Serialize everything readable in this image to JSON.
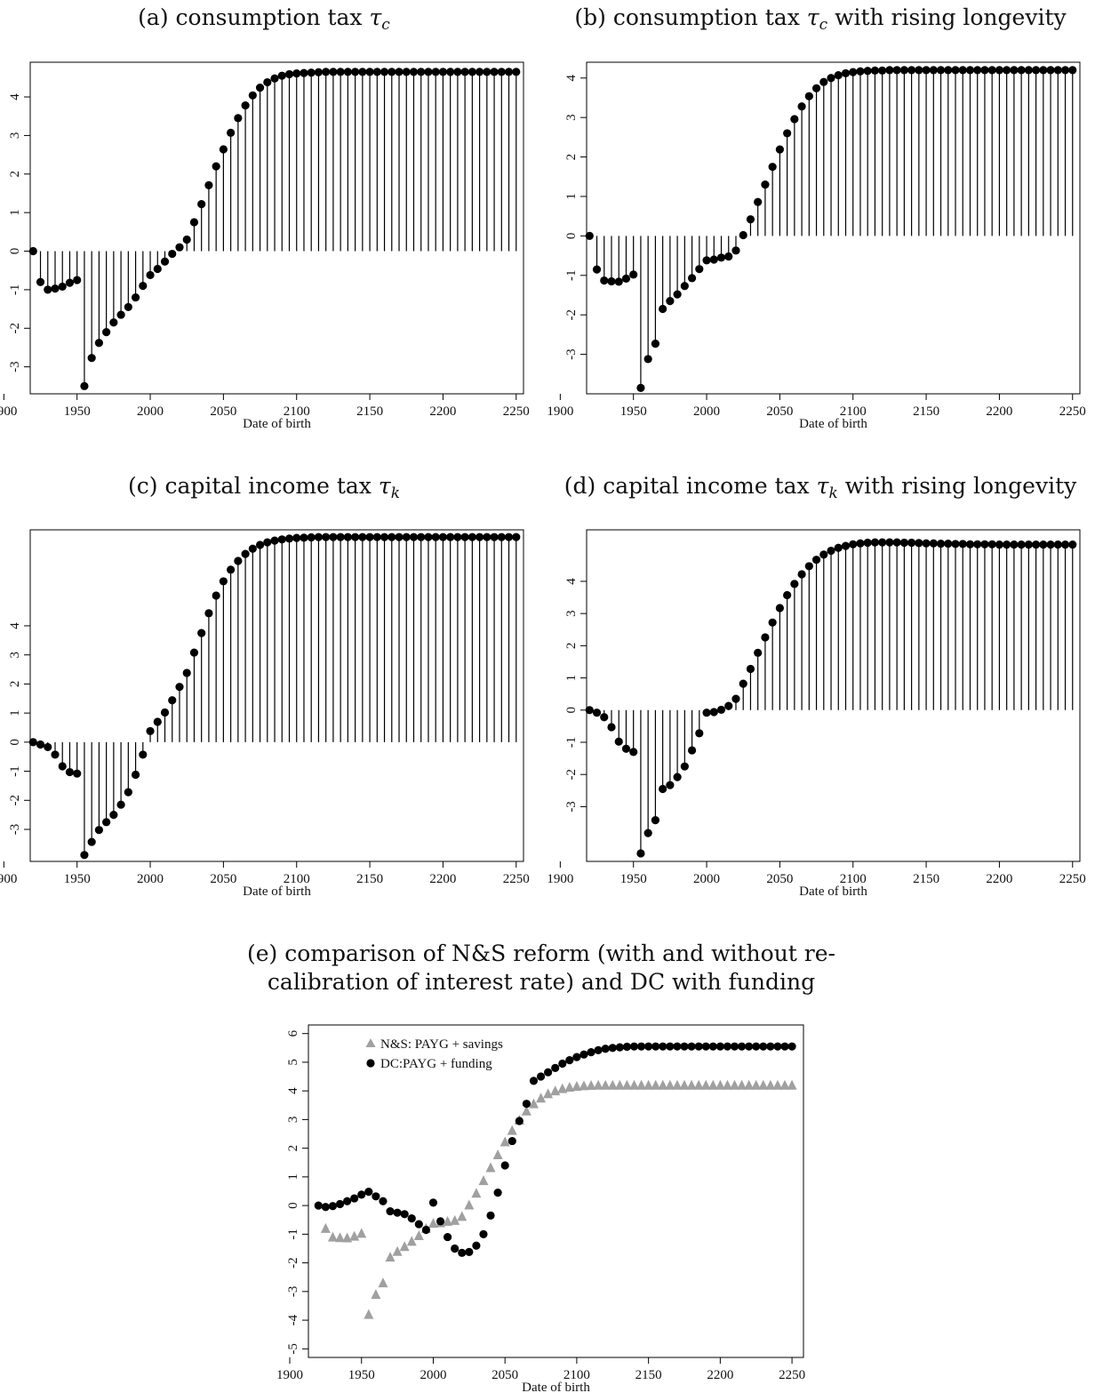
{
  "chart_data": [
    {
      "id": "a",
      "type": "stem",
      "title": "(a) consumption tax τc",
      "title_text": "(a) consumption tax ",
      "title_symbol": "τ",
      "title_subscript": "c",
      "xlabel": "Date of birth",
      "xlim": [
        1918,
        2255
      ],
      "ylim": [
        -3.7,
        4.9
      ],
      "xticks": [
        1900,
        1950,
        2000,
        2050,
        2100,
        2150,
        2200,
        2250
      ],
      "yticks": [
        -3,
        -2,
        -1,
        0,
        1,
        2,
        3,
        4
      ],
      "x_start": 1920,
      "x_step": 5,
      "values": [
        0,
        -0.8,
        -1.0,
        -0.97,
        -0.92,
        -0.82,
        -0.75,
        -3.5,
        -2.77,
        -2.38,
        -2.1,
        -1.85,
        -1.65,
        -1.45,
        -1.2,
        -0.9,
        -0.62,
        -0.46,
        -0.27,
        -0.07,
        0.1,
        0.3,
        0.75,
        1.22,
        1.71,
        2.2,
        2.64,
        3.07,
        3.45,
        3.78,
        4.04,
        4.24,
        4.38,
        4.48,
        4.55,
        4.59,
        4.61,
        4.62,
        4.63,
        4.64,
        4.65,
        4.65,
        4.65,
        4.65,
        4.65,
        4.65,
        4.65,
        4.65,
        4.65,
        4.65,
        4.65,
        4.65,
        4.65,
        4.65,
        4.65,
        4.65,
        4.65,
        4.65,
        4.65,
        4.65,
        4.65,
        4.65,
        4.65,
        4.65,
        4.65,
        4.65,
        4.65
      ]
    },
    {
      "id": "b",
      "type": "stem",
      "title": "(b) consumption tax τc with rising longevity",
      "title_text": "(b) consumption tax ",
      "title_symbol": "τ",
      "title_subscript": "c",
      "title_after": " with rising longevity",
      "xlabel": "Date of birth",
      "xlim": [
        1918,
        2255
      ],
      "ylim": [
        -4.0,
        4.4
      ],
      "xticks": [
        1900,
        1950,
        2000,
        2050,
        2100,
        2150,
        2200,
        2250
      ],
      "yticks": [
        -3,
        -2,
        -1,
        0,
        1,
        2,
        3,
        4
      ],
      "x_start": 1920,
      "x_step": 5,
      "values": [
        0,
        -0.85,
        -1.13,
        -1.15,
        -1.16,
        -1.08,
        -0.98,
        -3.85,
        -3.12,
        -2.73,
        -1.85,
        -1.65,
        -1.48,
        -1.27,
        -1.07,
        -0.84,
        -0.62,
        -0.6,
        -0.55,
        -0.52,
        -0.37,
        0.02,
        0.42,
        0.86,
        1.3,
        1.75,
        2.19,
        2.6,
        2.96,
        3.28,
        3.54,
        3.74,
        3.9,
        4.0,
        4.07,
        4.12,
        4.15,
        4.17,
        4.18,
        4.19,
        4.19,
        4.2,
        4.2,
        4.2,
        4.2,
        4.2,
        4.2,
        4.2,
        4.2,
        4.2,
        4.2,
        4.2,
        4.2,
        4.2,
        4.2,
        4.2,
        4.2,
        4.2,
        4.2,
        4.2,
        4.2,
        4.2,
        4.2,
        4.2,
        4.2,
        4.2,
        4.2
      ]
    },
    {
      "id": "c",
      "type": "stem",
      "title": "(c) capital income tax τk",
      "title_text": "(c) capital income tax ",
      "title_symbol": "τ",
      "title_subscript": "k",
      "xlabel": "Date of birth",
      "xlim": [
        1918,
        2255
      ],
      "ylim": [
        -4.1,
        7.3
      ],
      "xticks": [
        1900,
        1950,
        2000,
        2050,
        2100,
        2150,
        2200,
        2250
      ],
      "yticks": [
        -3,
        -2,
        -1,
        0,
        1,
        2,
        3,
        4
      ],
      "x_start": 1920,
      "x_step": 5,
      "values": [
        0,
        -0.08,
        -0.17,
        -0.43,
        -0.83,
        -1.03,
        -1.08,
        -3.88,
        -3.43,
        -3.02,
        -2.75,
        -2.5,
        -2.15,
        -1.72,
        -1.12,
        -0.43,
        0.38,
        0.7,
        1.02,
        1.44,
        1.9,
        2.38,
        3.08,
        3.75,
        4.43,
        5.04,
        5.53,
        5.93,
        6.23,
        6.47,
        6.65,
        6.78,
        6.87,
        6.93,
        6.97,
        7.0,
        7.02,
        7.03,
        7.04,
        7.05,
        7.05,
        7.05,
        7.05,
        7.05,
        7.05,
        7.05,
        7.05,
        7.05,
        7.05,
        7.05,
        7.05,
        7.05,
        7.05,
        7.05,
        7.05,
        7.05,
        7.05,
        7.05,
        7.05,
        7.05,
        7.05,
        7.05,
        7.05,
        7.05,
        7.05,
        7.05,
        7.05
      ]
    },
    {
      "id": "d",
      "type": "stem",
      "title": "(d) capital income tax τk with rising longevity",
      "title_text": "(d) capital income tax ",
      "title_symbol": "τ",
      "title_subscript": "k",
      "title_after": " with rising longevity",
      "xlabel": "Date of birth",
      "xlim": [
        1918,
        2255
      ],
      "ylim": [
        -4.7,
        5.6
      ],
      "xticks": [
        1900,
        1950,
        2000,
        2050,
        2100,
        2150,
        2200,
        2250
      ],
      "yticks": [
        -3,
        -2,
        -1,
        0,
        1,
        2,
        3,
        4
      ],
      "x_start": 1920,
      "x_step": 5,
      "values": [
        0,
        -0.08,
        -0.22,
        -0.53,
        -0.98,
        -1.2,
        -1.3,
        -4.45,
        -3.82,
        -3.42,
        -2.45,
        -2.33,
        -2.08,
        -1.75,
        -1.25,
        -0.72,
        -0.08,
        -0.06,
        0.01,
        0.13,
        0.35,
        0.82,
        1.28,
        1.78,
        2.26,
        2.72,
        3.17,
        3.57,
        3.92,
        4.22,
        4.47,
        4.67,
        4.83,
        4.95,
        5.04,
        5.1,
        5.15,
        5.18,
        5.2,
        5.21,
        5.21,
        5.21,
        5.21,
        5.2,
        5.2,
        5.19,
        5.18,
        5.18,
        5.17,
        5.17,
        5.16,
        5.16,
        5.15,
        5.15,
        5.15,
        5.15,
        5.14,
        5.14,
        5.14,
        5.14,
        5.14,
        5.14,
        5.14,
        5.14,
        5.14,
        5.14,
        5.14
      ]
    },
    {
      "id": "e",
      "type": "scatter",
      "title_lines": [
        "(e) comparison of N&S reform (with and without re-",
        "calibration of interest rate) and DC with funding"
      ],
      "xlabel": "Date of birth",
      "xlim": [
        1913,
        2258
      ],
      "ylim": [
        -5.3,
        6.3
      ],
      "xticks": [
        1900,
        1950,
        2000,
        2050,
        2100,
        2150,
        2200,
        2250
      ],
      "yticks": [
        -5,
        -4,
        -3,
        -2,
        -1,
        0,
        1,
        2,
        3,
        4,
        5,
        6
      ],
      "legend_position": "top-left",
      "series": [
        {
          "name": "N&S: PAYG + savings",
          "marker": "triangle",
          "color": "#a0a0a0",
          "x_start": 1925,
          "x_step": 5,
          "values": [
            -0.8,
            -1.1,
            -1.12,
            -1.13,
            -1.07,
            -0.97,
            -3.8,
            -3.1,
            -2.7,
            -1.8,
            -1.6,
            -1.43,
            -1.25,
            -1.05,
            -0.8,
            -0.62,
            -0.6,
            -0.55,
            -0.52,
            -0.38,
            0.02,
            0.43,
            0.87,
            1.32,
            1.77,
            2.22,
            2.62,
            2.98,
            3.3,
            3.55,
            3.75,
            3.9,
            4.0,
            4.08,
            4.13,
            4.16,
            4.18,
            4.19,
            4.2,
            4.2,
            4.2,
            4.2,
            4.2,
            4.2,
            4.2,
            4.2,
            4.2,
            4.2,
            4.2,
            4.2,
            4.2,
            4.2,
            4.2,
            4.2,
            4.2,
            4.2,
            4.2,
            4.2,
            4.2,
            4.2,
            4.2,
            4.2,
            4.2,
            4.2,
            4.2,
            4.2
          ]
        },
        {
          "name": "DC:PAYG + funding",
          "marker": "circle",
          "color": "#000000",
          "x_start": 1920,
          "x_step": 5,
          "values": [
            0,
            -0.05,
            -0.02,
            0.05,
            0.15,
            0.25,
            0.38,
            0.48,
            0.32,
            0.15,
            -0.2,
            -0.25,
            -0.3,
            -0.45,
            -0.65,
            -0.85,
            0.1,
            -0.55,
            -1.1,
            -1.5,
            -1.65,
            -1.62,
            -1.4,
            -1.0,
            -0.35,
            0.45,
            1.4,
            2.25,
            2.95,
            3.55,
            4.35,
            4.5,
            4.65,
            4.8,
            4.95,
            5.07,
            5.18,
            5.27,
            5.35,
            5.42,
            5.47,
            5.5,
            5.52,
            5.54,
            5.55,
            5.55,
            5.55,
            5.55,
            5.55,
            5.55,
            5.55,
            5.55,
            5.55,
            5.55,
            5.55,
            5.55,
            5.55,
            5.55,
            5.55,
            5.55,
            5.55,
            5.55,
            5.55,
            5.55,
            5.55,
            5.55,
            5.55
          ]
        }
      ]
    }
  ]
}
